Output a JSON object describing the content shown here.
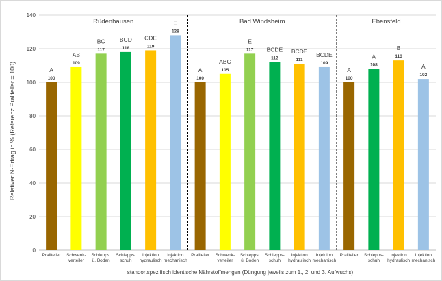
{
  "chart_data": {
    "type": "bar",
    "ylabel": "Relativer N-Ertrag in % (Referenz Prallteller = 100)",
    "xlabel": "standortspezifisch identische Nährstoffmengen (Düngung jeweils zum 1., 2. und 3. Aufwuchs)",
    "ylim": [
      0,
      140
    ],
    "yticks": [
      0,
      20,
      40,
      60,
      80,
      100,
      120,
      140
    ],
    "grid": true,
    "legend": "none",
    "groups": [
      {
        "name": "Rüdenhausen",
        "bars": [
          {
            "category": [
              "Prallteller"
            ],
            "value": 100,
            "value_label": "100",
            "letters": "A",
            "color": "#996600"
          },
          {
            "category": [
              "Schwenk-",
              "verteiler"
            ],
            "value": 109,
            "value_label": "109",
            "letters": "AB",
            "color": "#ffff00"
          },
          {
            "category": [
              "Schlepps.",
              "ü. Boden"
            ],
            "value": 117,
            "value_label": "117",
            "letters": "BC",
            "color": "#92d050"
          },
          {
            "category": [
              "Schlepps-",
              "schuh"
            ],
            "value": 118,
            "value_label": "118",
            "letters": "BCD",
            "color": "#00b050"
          },
          {
            "category": [
              "Injektion",
              "hydraulisch"
            ],
            "value": 119,
            "value_label": "119",
            "letters": "CDE",
            "color": "#ffc000"
          },
          {
            "category": [
              "Injektion",
              "mechanisch"
            ],
            "value": 128,
            "value_label": "128",
            "letters": "E",
            "color": "#9dc3e6"
          }
        ]
      },
      {
        "name": "Bad Windsheim",
        "bars": [
          {
            "category": [
              "Prallteller"
            ],
            "value": 100,
            "value_label": "100",
            "letters": "A",
            "color": "#996600"
          },
          {
            "category": [
              "Schwenk-",
              "verteiler"
            ],
            "value": 105,
            "value_label": "105",
            "letters": "ABC",
            "color": "#ffff00"
          },
          {
            "category": [
              "Schlepps.",
              "ü. Boden"
            ],
            "value": 117,
            "value_label": "117",
            "letters": "E",
            "color": "#92d050"
          },
          {
            "category": [
              "Schlepps-",
              "schuh"
            ],
            "value": 112,
            "value_label": "112",
            "letters": "BCDE",
            "color": "#00b050"
          },
          {
            "category": [
              "Injektion",
              "hydraulisch"
            ],
            "value": 111,
            "value_label": "111",
            "letters": "BCDE",
            "color": "#ffc000"
          },
          {
            "category": [
              "Injektion",
              "mechanisch"
            ],
            "value": 109,
            "value_label": "109",
            "letters": "BCDE",
            "color": "#9dc3e6"
          }
        ]
      },
      {
        "name": "Ebensfeld",
        "bars": [
          {
            "category": [
              "Prallteller"
            ],
            "value": 100,
            "value_label": "100",
            "letters": "A",
            "color": "#996600"
          },
          {
            "category": [
              "Schlepps-",
              "schuh"
            ],
            "value": 108,
            "value_label": "108",
            "letters": "A",
            "color": "#00b050"
          },
          {
            "category": [
              "Injektion",
              "hydraulisch"
            ],
            "value": 113,
            "value_label": "113",
            "letters": "B",
            "color": "#ffc000"
          },
          {
            "category": [
              "Injektion",
              "mechanisch"
            ],
            "value": 102,
            "value_label": "102",
            "letters": "A",
            "color": "#9dc3e6"
          }
        ]
      }
    ]
  }
}
